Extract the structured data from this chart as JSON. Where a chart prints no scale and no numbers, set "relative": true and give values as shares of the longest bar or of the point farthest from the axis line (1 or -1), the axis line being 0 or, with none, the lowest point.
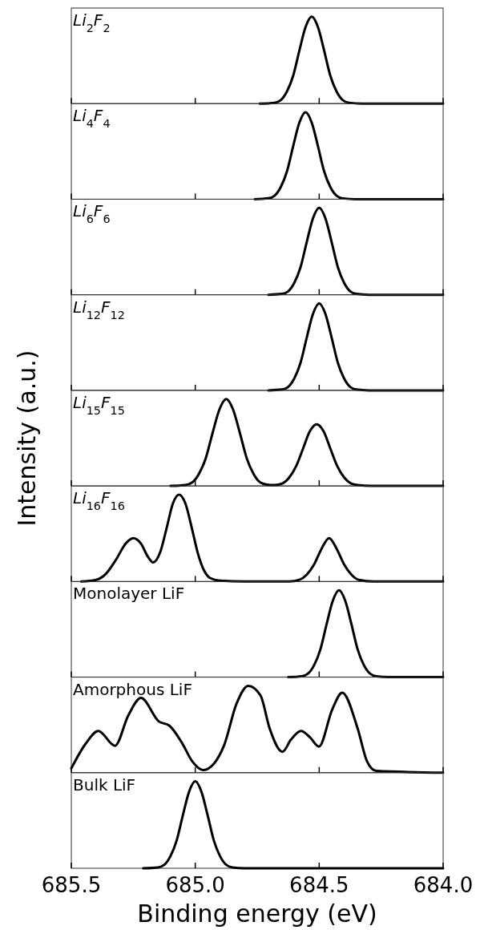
{
  "chart_data": [
    {
      "type": "line",
      "title": "Li$_{2}$F$_{2}$",
      "relative": true,
      "xlim": [
        685.5,
        684.0
      ],
      "tick_labels": false,
      "series": [
        {
          "color": "#000000",
          "x": [
            684.74,
            684.68,
            684.655,
            684.63,
            684.605,
            684.58,
            684.555,
            684.53,
            684.505,
            684.48,
            684.455,
            684.43,
            684.405,
            684.38,
            684.33,
            684.0
          ],
          "values": [
            0,
            0.01,
            0.04,
            0.14,
            0.32,
            0.61,
            0.88,
            1,
            0.88,
            0.61,
            0.32,
            0.14,
            0.04,
            0.01,
            0,
            0
          ]
        }
      ]
    },
    {
      "type": "line",
      "title": "Li$_{4}$F$_{4}$",
      "relative": true,
      "xlim": [
        685.5,
        684.0
      ],
      "tick_labels": false,
      "series": [
        {
          "color": "#000000",
          "x": [
            684.76,
            684.705,
            684.68,
            684.655,
            684.63,
            684.605,
            684.58,
            684.555,
            684.53,
            684.505,
            684.48,
            684.455,
            684.43,
            684.405,
            684.355,
            684.0
          ],
          "values": [
            0,
            0.01,
            0.04,
            0.14,
            0.32,
            0.61,
            0.88,
            1,
            0.88,
            0.61,
            0.32,
            0.14,
            0.04,
            0.01,
            0,
            0
          ]
        }
      ]
    },
    {
      "type": "line",
      "title": "Li$_{6}$F$_{6}$",
      "relative": true,
      "xlim": [
        685.5,
        684.0
      ],
      "tick_labels": false,
      "series": [
        {
          "color": "#000000",
          "x": [
            684.705,
            684.65,
            684.625,
            684.6,
            684.575,
            684.55,
            684.525,
            684.5,
            684.475,
            684.45,
            684.425,
            684.4,
            684.375,
            684.35,
            684.3,
            684.0
          ],
          "values": [
            0,
            0.01,
            0.04,
            0.14,
            0.32,
            0.61,
            0.88,
            1,
            0.88,
            0.61,
            0.32,
            0.14,
            0.04,
            0.01,
            0,
            0
          ]
        }
      ]
    },
    {
      "type": "line",
      "title": "Li$_{12}$F$_{12}$",
      "relative": true,
      "xlim": [
        685.5,
        684.0
      ],
      "tick_labels": false,
      "series": [
        {
          "color": "#000000",
          "x": [
            684.705,
            684.65,
            684.625,
            684.6,
            684.575,
            684.55,
            684.525,
            684.5,
            684.475,
            684.45,
            684.425,
            684.4,
            684.375,
            684.35,
            684.3,
            684.0
          ],
          "values": [
            0,
            0.01,
            0.04,
            0.14,
            0.32,
            0.61,
            0.88,
            1,
            0.88,
            0.61,
            0.32,
            0.14,
            0.04,
            0.01,
            0,
            0
          ]
        }
      ]
    },
    {
      "type": "line",
      "title": "Li$_{15}$F$_{15}$",
      "ylabel": "Intensity (a.u.)",
      "relative": true,
      "xlim": [
        685.5,
        684.0
      ],
      "tick_labels": false,
      "series": [
        {
          "color": "#000000",
          "x": [
            685.1,
            685.04,
            685.0125,
            684.985,
            684.9575,
            684.93,
            684.9025,
            684.875,
            684.8475,
            684.82,
            684.7925,
            684.765,
            684.7375,
            684.71,
            684.68,
            684.6475,
            684.62,
            684.5925,
            684.565,
            684.5375,
            684.51,
            684.4825,
            684.455,
            684.4275,
            684.4,
            684.3725,
            684.345,
            684.29,
            684.0
          ],
          "values": [
            0,
            0.01,
            0.04,
            0.14,
            0.32,
            0.61,
            0.88,
            1,
            0.88,
            0.61,
            0.32,
            0.14,
            0.04,
            0.015,
            0.01,
            0.03,
            0.1,
            0.23,
            0.43,
            0.63,
            0.71,
            0.63,
            0.43,
            0.23,
            0.1,
            0.03,
            0.01,
            0,
            0
          ]
        }
      ]
    },
    {
      "type": "line",
      "title": "Li$_{16}$F$_{16}$",
      "relative": true,
      "xlim": [
        685.5,
        684.0
      ],
      "tick_labels": false,
      "series": [
        {
          "color": "#000000",
          "x": [
            685.46,
            685.4,
            685.36,
            685.32,
            685.28,
            685.25,
            685.22,
            685.19,
            685.17,
            685.14,
            685.115,
            685.09,
            685.065,
            685.04,
            685.015,
            684.99,
            684.965,
            684.94,
            684.9,
            684.8,
            684.62,
            684.58,
            684.55,
            684.52,
            684.49,
            684.46,
            684.43,
            684.4,
            684.37,
            684.34,
            684.28,
            684.0
          ],
          "values": [
            0,
            0.02,
            0.09,
            0.25,
            0.44,
            0.5,
            0.44,
            0.28,
            0.22,
            0.35,
            0.62,
            0.9,
            1,
            0.9,
            0.63,
            0.33,
            0.13,
            0.04,
            0.01,
            0,
            0,
            0.02,
            0.08,
            0.2,
            0.38,
            0.5,
            0.38,
            0.2,
            0.08,
            0.02,
            0,
            0
          ]
        }
      ]
    },
    {
      "type": "line",
      "title": "Monolayer LiF",
      "relative": true,
      "xlim": [
        685.5,
        684.0
      ],
      "tick_labels": false,
      "series": [
        {
          "color": "#000000",
          "x": [
            684.625,
            684.57,
            684.545,
            684.52,
            684.495,
            684.47,
            684.445,
            684.42,
            684.395,
            684.37,
            684.345,
            684.32,
            684.295,
            684.27,
            684.22,
            684.0
          ],
          "values": [
            0,
            0.01,
            0.04,
            0.14,
            0.32,
            0.61,
            0.88,
            1,
            0.88,
            0.61,
            0.32,
            0.14,
            0.04,
            0.01,
            0,
            0
          ]
        }
      ]
    },
    {
      "type": "line",
      "title": "Amorphous LiF",
      "relative": true,
      "xlim": [
        685.5,
        684.0
      ],
      "tick_labels": false,
      "series": [
        {
          "color": "#000000",
          "x": [
            685.5,
            685.443,
            685.391,
            685.324,
            685.27,
            685.219,
            685.147,
            685.104,
            685.055,
            685.012,
            684.969,
            684.926,
            684.883,
            684.834,
            684.786,
            684.737,
            684.7,
            684.648,
            684.614,
            684.573,
            684.538,
            684.501,
            684.447,
            684.407,
            684.345,
            684.307,
            684.27,
            684.0
          ],
          "values": [
            0.05,
            0.33,
            0.48,
            0.31,
            0.66,
            0.86,
            0.59,
            0.54,
            0.35,
            0.13,
            0.03,
            0.1,
            0.32,
            0.79,
            1,
            0.89,
            0.51,
            0.24,
            0.38,
            0.48,
            0.41,
            0.3,
            0.73,
            0.92,
            0.51,
            0.13,
            0.02,
            0
          ]
        }
      ]
    },
    {
      "type": "line",
      "title": "Bulk LiF",
      "xlabel": "Binding energy (eV)",
      "relative": true,
      "xlim": [
        685.5,
        684.0
      ],
      "xticks": [
        685.5,
        {
          "value": 685,
          "label": "685.0"
        },
        684.5,
        {
          "value": 684,
          "label": "684.0"
        }
      ],
      "tick_labels": "x",
      "series": [
        {
          "color": "#000000",
          "x": [
            685.21,
            685.15,
            685.125,
            685.1,
            685.075,
            685.05,
            685.025,
            685.0,
            684.975,
            684.95,
            684.925,
            684.9,
            684.875,
            684.85,
            684.8,
            684.0
          ],
          "values": [
            0,
            0.01,
            0.04,
            0.14,
            0.32,
            0.61,
            0.88,
            1,
            0.88,
            0.61,
            0.32,
            0.14,
            0.04,
            0.01,
            0,
            0
          ]
        }
      ]
    }
  ]
}
